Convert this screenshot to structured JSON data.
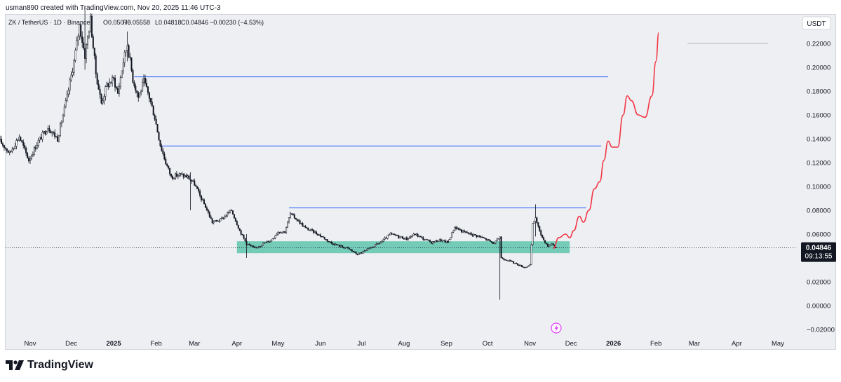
{
  "attribution": "usman890 created with TradingView.com, Nov 20, 2025 11:46 UTC-3",
  "branding": {
    "logo_text": "TradingView"
  },
  "chart_data": {
    "type": "candlestick",
    "symbol_line": "ZK / TetherUS · 1D · Binance",
    "ohlc": {
      "open": "O0.05076",
      "high": "H0.05558",
      "low": "L0.04818",
      "close": "C0.04846",
      "change": "−0.00230 (−4.53%)"
    },
    "currency_button": "USDT",
    "last_price_label": "0.04846",
    "countdown_label": "09:13:55",
    "y_ticks": [
      "0.22000",
      "0.20000",
      "0.18000",
      "0.16000",
      "0.14000",
      "0.12000",
      "0.10000",
      "0.08000",
      "0.06000",
      "0.04000",
      "0.02000",
      "0.00000",
      "−0.02000"
    ],
    "y_tick_values": [
      0.22,
      0.2,
      0.18,
      0.16,
      0.14,
      0.12,
      0.1,
      0.08,
      0.06,
      0.04,
      0.02,
      0.0,
      -0.02
    ],
    "ylim": [
      -0.025,
      0.245
    ],
    "x_ticks": [
      "Nov",
      "Dec",
      "2025",
      "Feb",
      "Mar",
      "Apr",
      "May",
      "Jun",
      "Jul",
      "Aug",
      "Sep",
      "Oct",
      "Nov",
      "Dec",
      "2026",
      "Feb",
      "Mar",
      "Apr",
      "May"
    ],
    "x_tick_dates": [
      "2024-11-01",
      "2024-12-01",
      "2025-01-01",
      "2025-02-01",
      "2025-03-01",
      "2025-04-01",
      "2025-05-01",
      "2025-06-01",
      "2025-07-01",
      "2025-08-01",
      "2025-09-01",
      "2025-10-01",
      "2025-11-01",
      "2025-12-01",
      "2026-01-01",
      "2026-02-01",
      "2026-03-01",
      "2026-04-01",
      "2026-05-01"
    ],
    "x_bold_ticks": [
      "2025",
      "2026"
    ],
    "price_path": [
      [
        "2024-10-10",
        0.138
      ],
      [
        "2024-10-17",
        0.128
      ],
      [
        "2024-10-24",
        0.142
      ],
      [
        "2024-10-31",
        0.122
      ],
      [
        "2024-11-07",
        0.138
      ],
      [
        "2024-11-14",
        0.15
      ],
      [
        "2024-11-21",
        0.14
      ],
      [
        "2024-11-28",
        0.175
      ],
      [
        "2024-12-03",
        0.205
      ],
      [
        "2024-12-07",
        0.235
      ],
      [
        "2024-12-11",
        0.21
      ],
      [
        "2024-12-15",
        0.24
      ],
      [
        "2024-12-19",
        0.195
      ],
      [
        "2024-12-23",
        0.17
      ],
      [
        "2024-12-27",
        0.185
      ],
      [
        "2025-01-01",
        0.19
      ],
      [
        "2025-01-04",
        0.178
      ],
      [
        "2025-01-08",
        0.205
      ],
      [
        "2025-01-11",
        0.22
      ],
      [
        "2025-01-15",
        0.19
      ],
      [
        "2025-01-19",
        0.175
      ],
      [
        "2025-01-23",
        0.188
      ],
      [
        "2025-01-27",
        0.175
      ],
      [
        "2025-01-31",
        0.158
      ],
      [
        "2025-02-04",
        0.135
      ],
      [
        "2025-02-08",
        0.12
      ],
      [
        "2025-02-12",
        0.108
      ],
      [
        "2025-02-18",
        0.11
      ],
      [
        "2025-02-24",
        0.108
      ],
      [
        "2025-03-01",
        0.102
      ],
      [
        "2025-03-05",
        0.092
      ],
      [
        "2025-03-09",
        0.083
      ],
      [
        "2025-03-14",
        0.07
      ],
      [
        "2025-03-20",
        0.072
      ],
      [
        "2025-03-28",
        0.08
      ],
      [
        "2025-04-03",
        0.063
      ],
      [
        "2025-04-08",
        0.052
      ],
      [
        "2025-04-14",
        0.048
      ],
      [
        "2025-04-20",
        0.052
      ],
      [
        "2025-04-26",
        0.055
      ],
      [
        "2025-05-01",
        0.062
      ],
      [
        "2025-05-06",
        0.062
      ],
      [
        "2025-05-10",
        0.077
      ],
      [
        "2025-05-15",
        0.072
      ],
      [
        "2025-05-21",
        0.065
      ],
      [
        "2025-05-27",
        0.062
      ],
      [
        "2025-06-02",
        0.058
      ],
      [
        "2025-06-08",
        0.053
      ],
      [
        "2025-06-15",
        0.05
      ],
      [
        "2025-06-21",
        0.048
      ],
      [
        "2025-06-28",
        0.043
      ],
      [
        "2025-07-04",
        0.046
      ],
      [
        "2025-07-10",
        0.05
      ],
      [
        "2025-07-16",
        0.054
      ],
      [
        "2025-07-22",
        0.06
      ],
      [
        "2025-07-28",
        0.058
      ],
      [
        "2025-08-03",
        0.056
      ],
      [
        "2025-08-09",
        0.06
      ],
      [
        "2025-08-15",
        0.056
      ],
      [
        "2025-08-21",
        0.053
      ],
      [
        "2025-08-27",
        0.055
      ],
      [
        "2025-09-02",
        0.053
      ],
      [
        "2025-09-07",
        0.066
      ],
      [
        "2025-09-13",
        0.062
      ],
      [
        "2025-09-19",
        0.06
      ],
      [
        "2025-09-25",
        0.058
      ],
      [
        "2025-10-01",
        0.055
      ],
      [
        "2025-10-06",
        0.052
      ],
      [
        "2025-10-10",
        0.058
      ],
      [
        "2025-10-11",
        0.04
      ],
      [
        "2025-10-16",
        0.038
      ],
      [
        "2025-10-22",
        0.035
      ],
      [
        "2025-10-28",
        0.032
      ],
      [
        "2025-11-01",
        0.034
      ],
      [
        "2025-11-03",
        0.068
      ],
      [
        "2025-11-05",
        0.074
      ],
      [
        "2025-11-08",
        0.062
      ],
      [
        "2025-11-11",
        0.055
      ],
      [
        "2025-11-14",
        0.05
      ],
      [
        "2025-11-17",
        0.052
      ],
      [
        "2025-11-20",
        0.0485
      ]
    ],
    "wicks": [
      [
        "2024-12-11",
        0.198,
        0.25
      ],
      [
        "2025-01-11",
        0.205,
        0.23
      ],
      [
        "2025-02-26",
        0.08,
        0.112
      ],
      [
        "2025-04-08",
        0.04,
        0.06
      ],
      [
        "2025-10-10",
        0.005,
        0.058
      ],
      [
        "2025-11-05",
        0.058,
        0.085
      ]
    ],
    "horizontal_levels": [
      {
        "value": 0.192,
        "from": "2025-01-16",
        "to": "2025-12-28"
      },
      {
        "value": 0.134,
        "from": "2025-02-04",
        "to": "2025-12-23"
      },
      {
        "value": 0.082,
        "from": "2025-05-09",
        "to": "2025-12-12"
      },
      {
        "value": 0.22,
        "from": "2026-02-24",
        "to": "2026-04-24"
      }
    ],
    "support_zone": {
      "from": "2025-04-01",
      "to": "2025-11-30",
      "low": 0.044,
      "high": 0.054
    },
    "projection_path": [
      [
        "2025-11-18",
        0.048
      ],
      [
        "2025-11-22",
        0.057
      ],
      [
        "2025-11-27",
        0.06
      ],
      [
        "2025-11-30",
        0.057
      ],
      [
        "2025-12-03",
        0.063
      ],
      [
        "2025-12-07",
        0.075
      ],
      [
        "2025-12-10",
        0.07
      ],
      [
        "2025-12-14",
        0.08
      ],
      [
        "2025-12-18",
        0.098
      ],
      [
        "2025-12-22",
        0.104
      ],
      [
        "2025-12-25",
        0.122
      ],
      [
        "2025-12-28",
        0.138
      ],
      [
        "2025-12-31",
        0.133
      ],
      [
        "2026-01-04",
        0.133
      ],
      [
        "2026-01-08",
        0.16
      ],
      [
        "2026-01-11",
        0.176
      ],
      [
        "2026-01-14",
        0.172
      ],
      [
        "2026-01-19",
        0.16
      ],
      [
        "2026-01-24",
        0.158
      ],
      [
        "2026-01-29",
        0.176
      ],
      [
        "2026-02-01",
        0.205
      ],
      [
        "2026-02-03",
        0.229
      ]
    ],
    "last_date": "2025-11-20",
    "last_price": 0.04846,
    "colors": {
      "candles": "#131722",
      "bull_candles": "#26a69a",
      "levels": "#2962ff",
      "zone": "#4bbfa3",
      "projection": "#f23645",
      "price_tag": "#131722"
    }
  }
}
